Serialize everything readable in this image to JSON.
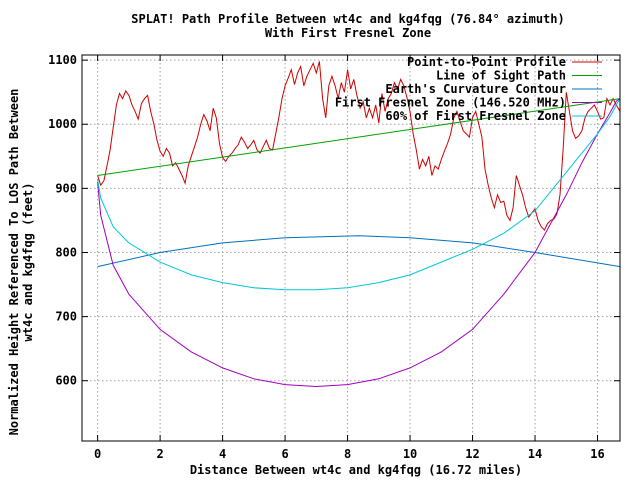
{
  "chart_data": {
    "type": "line",
    "title": "SPLAT! Path Profile Between wt4c and kg4fqg (76.84° azimuth)",
    "subtitle": "With First Fresnel Zone",
    "xlabel": "Distance Between wt4c and kg4fqg (16.72 miles)",
    "ylabel_lines": [
      "Normalized Height Referenced To LOS Path Between",
      "wt4c and kg4fqg (feet)"
    ],
    "xlim": [
      -0.5,
      16.72
    ],
    "ylim": [
      506,
      1108
    ],
    "x_ticks": [
      0,
      2,
      4,
      6,
      8,
      10,
      12,
      14,
      16
    ],
    "y_ticks": [
      600,
      700,
      800,
      900,
      1000,
      1100
    ],
    "grid": true,
    "legend_position": "top-right",
    "series": [
      {
        "name": "Point-to-Point Profile",
        "color": "#d00000",
        "x": [
          0.0,
          0.1,
          0.2,
          0.3,
          0.4,
          0.5,
          0.6,
          0.7,
          0.8,
          0.9,
          1.0,
          1.1,
          1.2,
          1.3,
          1.4,
          1.5,
          1.6,
          1.7,
          1.8,
          1.9,
          2.0,
          2.1,
          2.2,
          2.3,
          2.4,
          2.5,
          2.6,
          2.7,
          2.8,
          2.9,
          3.0,
          3.1,
          3.2,
          3.3,
          3.4,
          3.5,
          3.6,
          3.7,
          3.8,
          3.9,
          4.0,
          4.1,
          4.2,
          4.3,
          4.4,
          4.5,
          4.6,
          4.7,
          4.8,
          4.9,
          5.0,
          5.1,
          5.2,
          5.3,
          5.4,
          5.5,
          5.6,
          5.7,
          5.8,
          5.9,
          6.0,
          6.1,
          6.2,
          6.3,
          6.4,
          6.5,
          6.6,
          6.7,
          6.8,
          6.9,
          7.0,
          7.1,
          7.2,
          7.3,
          7.4,
          7.5,
          7.6,
          7.7,
          7.8,
          7.9,
          8.0,
          8.1,
          8.2,
          8.3,
          8.4,
          8.5,
          8.6,
          8.7,
          8.8,
          8.9,
          9.0,
          9.1,
          9.2,
          9.3,
          9.4,
          9.5,
          9.6,
          9.7,
          9.8,
          9.9,
          10.0,
          10.1,
          10.2,
          10.3,
          10.4,
          10.5,
          10.6,
          10.7,
          10.8,
          10.9,
          11.0,
          11.1,
          11.2,
          11.3,
          11.4,
          11.5,
          11.6,
          11.7,
          11.8,
          11.9,
          12.0,
          12.1,
          12.2,
          12.3,
          12.4,
          12.5,
          12.6,
          12.7,
          12.8,
          12.9,
          13.0,
          13.1,
          13.2,
          13.3,
          13.4,
          13.5,
          13.6,
          13.7,
          13.8,
          13.9,
          14.0,
          14.1,
          14.2,
          14.3,
          14.4,
          14.5,
          14.6,
          14.7,
          14.8,
          14.9,
          15.0,
          15.1,
          15.2,
          15.3,
          15.4,
          15.5,
          15.6,
          15.7,
          15.8,
          15.9,
          16.0,
          16.1,
          16.2,
          16.3,
          16.4,
          16.5,
          16.6,
          16.72
        ],
        "y": [
          920,
          905,
          912,
          935,
          960,
          995,
          1030,
          1048,
          1040,
          1052,
          1045,
          1030,
          1020,
          1008,
          1032,
          1040,
          1045,
          1020,
          1000,
          975,
          958,
          950,
          962,
          955,
          935,
          940,
          930,
          920,
          908,
          935,
          950,
          965,
          980,
          1000,
          1015,
          1005,
          990,
          1025,
          1010,
          970,
          948,
          942,
          950,
          955,
          962,
          968,
          980,
          972,
          962,
          968,
          975,
          960,
          955,
          965,
          975,
          962,
          960,
          985,
          1010,
          1040,
          1060,
          1072,
          1085,
          1062,
          1080,
          1090,
          1060,
          1075,
          1085,
          1095,
          1080,
          1098,
          1040,
          1010,
          1060,
          1075,
          1060,
          1040,
          1065,
          1050,
          1085,
          1055,
          1070,
          1045,
          1025,
          1035,
          1010,
          1025,
          1010,
          1030,
          1002,
          1048,
          1020,
          1040,
          1048,
          1065,
          1055,
          1070,
          1060,
          1042,
          1020,
          985,
          960,
          930,
          945,
          935,
          950,
          920,
          935,
          930,
          945,
          958,
          970,
          985,
          1010,
          1020,
          1005,
          990,
          985,
          980,
          1010,
          1020,
          1000,
          980,
          930,
          905,
          885,
          870,
          890,
          878,
          880,
          858,
          850,
          870,
          920,
          905,
          890,
          870,
          855,
          862,
          868,
          850,
          840,
          835,
          845,
          850,
          852,
          860,
          890,
          960,
          1050,
          1020,
          990,
          978,
          982,
          990,
          1010,
          1020,
          1025,
          1030,
          1020,
          1008,
          1010,
          1040,
          1030,
          1040,
          1030,
          1020
        ]
      },
      {
        "name": "Line of Sight Path",
        "color": "#00a000",
        "x": [
          0.0,
          16.72
        ],
        "y": [
          920,
          1040
        ]
      },
      {
        "name": "Earth's Curvature Contour",
        "color": "#0070c0",
        "x": [
          0.0,
          2.0,
          4.0,
          6.0,
          8.36,
          10.0,
          12.0,
          14.0,
          16.72
        ],
        "y": [
          778,
          800,
          815,
          823,
          826,
          823,
          815,
          800,
          778
        ]
      },
      {
        "name": "First Fresnel Zone (146.520 MHz)",
        "color": "#a000c0",
        "x": [
          0.0,
          0.1,
          0.5,
          1.0,
          2.0,
          3.0,
          4.0,
          5.0,
          6.0,
          7.0,
          8.0,
          9.0,
          10.0,
          11.0,
          12.0,
          13.0,
          14.0,
          15.0,
          15.5,
          16.0,
          16.4,
          16.6,
          16.72
        ],
        "y": [
          910,
          858,
          780,
          735,
          680,
          645,
          620,
          603,
          594,
          591,
          594,
          603,
          620,
          645,
          680,
          735,
          800,
          890,
          940,
          985,
          1018,
          1036,
          1040
        ]
      },
      {
        "name": "60% of First Fresnel Zone",
        "color": "#00c8d8",
        "x": [
          0.0,
          0.1,
          0.5,
          1.0,
          2.0,
          3.0,
          4.0,
          5.0,
          6.0,
          7.0,
          8.0,
          9.0,
          10.0,
          11.0,
          12.0,
          13.0,
          14.0,
          15.0,
          15.5,
          16.0,
          16.4,
          16.6,
          16.72
        ],
        "y": [
          914,
          885,
          840,
          815,
          785,
          765,
          753,
          745,
          742,
          742,
          745,
          753,
          765,
          785,
          805,
          830,
          865,
          925,
          955,
          985,
          1012,
          1030,
          1040
        ]
      }
    ]
  }
}
